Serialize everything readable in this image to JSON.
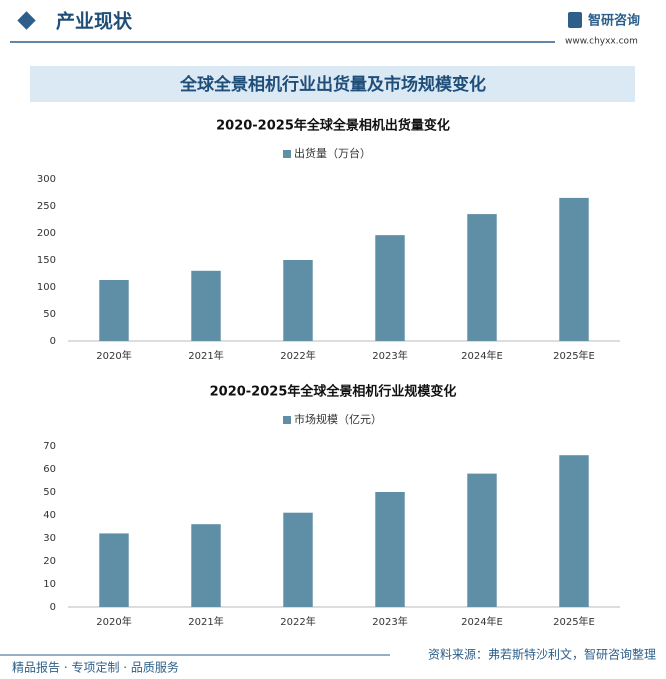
{
  "header": {
    "section": "产业现状",
    "brand": "智研咨询",
    "url": "www.chyxx.com"
  },
  "banner": "全球全景相机行业出货量及市场规模变化",
  "chart_data": [
    {
      "type": "bar",
      "title": "2020-2025年全球全景相机出货量变化",
      "categories": [
        "2020年",
        "2021年",
        "2022年",
        "2023年",
        "2024年E",
        "2025年E"
      ],
      "series": [
        {
          "name": "出货量（万台）",
          "color": "#5e8fa6",
          "values": [
            113,
            130,
            150,
            196,
            235,
            265
          ]
        }
      ],
      "ylim": [
        0,
        300
      ],
      "yticks": [
        0,
        50,
        100,
        150,
        200,
        250,
        300
      ],
      "grid": false
    },
    {
      "type": "bar",
      "title": "2020-2025年全球全景相机行业规模变化",
      "categories": [
        "2020年",
        "2021年",
        "2022年",
        "2023年",
        "2024年E",
        "2025年E"
      ],
      "series": [
        {
          "name": "市场规模（亿元）",
          "color": "#5e8fa6",
          "values": [
            32,
            36,
            41,
            50,
            58,
            66
          ]
        }
      ],
      "ylim": [
        0,
        70
      ],
      "yticks": [
        0,
        10,
        20,
        30,
        40,
        50,
        60,
        70
      ],
      "grid": false
    }
  ],
  "footer": {
    "slogan": "精品报告 · 专项定制 · 品质服务",
    "source": "资料来源：弗若斯特沙利文，智研咨询整理"
  }
}
